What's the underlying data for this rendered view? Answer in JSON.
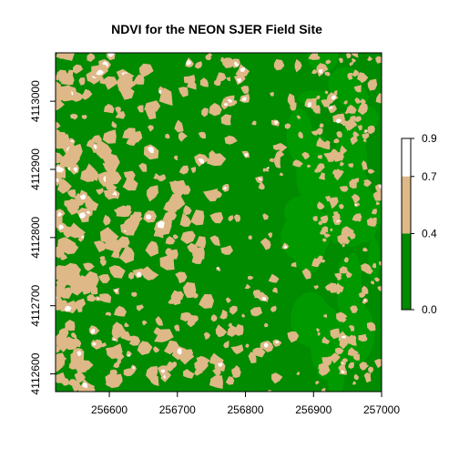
{
  "chart_data": {
    "type": "heatmap",
    "title": "NDVI for the NEON SJER Field Site",
    "xlabel": "",
    "ylabel": "",
    "xlim": [
      256521,
      257000
    ],
    "ylim": [
      4112574,
      4113071
    ],
    "x_ticks": [
      256600,
      256700,
      256800,
      256900,
      257000
    ],
    "y_ticks": [
      4112600,
      4112700,
      4112800,
      4112900,
      4113000
    ],
    "x_tick_labels": [
      "256600",
      "256700",
      "256800",
      "256900",
      "257000"
    ],
    "y_tick_labels": [
      "4112600",
      "4112700",
      "4112800",
      "4112900",
      "4113000"
    ],
    "legend": {
      "placement": "right",
      "breaks": [
        0.0,
        0.4,
        0.7,
        0.9
      ],
      "labels": [
        "0.0",
        "0.4",
        "0.7",
        "0.9"
      ],
      "classes": [
        {
          "from": 0.9,
          "to": 0.7,
          "color": "#ffffff"
        },
        {
          "from": 0.7,
          "to": 0.4,
          "color": "#deb887"
        },
        {
          "from": 0.4,
          "to": 0.0,
          "color": "#008b00"
        }
      ]
    },
    "colors": {
      "low": "#008b00",
      "mid": "#deb887",
      "high": "#ffffff",
      "green_variant": "#009a00"
    }
  }
}
